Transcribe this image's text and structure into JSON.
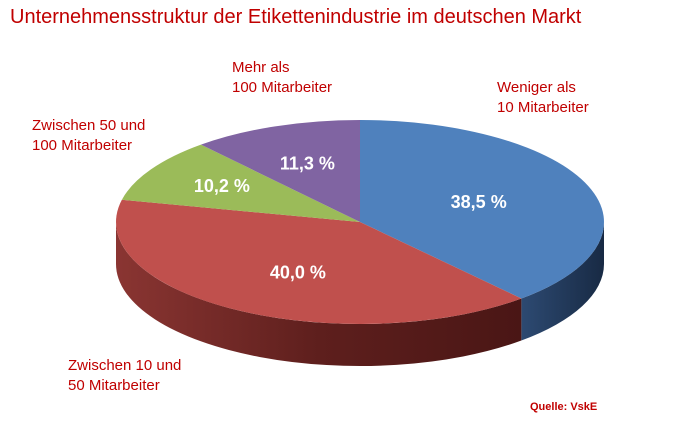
{
  "chart_data": {
    "type": "pie",
    "title": "Unternehmensstruktur der Etikettenindustrie im deutschen Markt",
    "source": "Quelle: VskE",
    "slices": [
      {
        "label_lines": [
          "Weniger als",
          "10 Mitarbeiter"
        ],
        "value": 38.5,
        "value_label": "38,5 %",
        "color": "#4f81bd"
      },
      {
        "label_lines": [
          "Zwischen 10 und",
          "50 Mitarbeiter"
        ],
        "value": 40.0,
        "value_label": "40,0 %",
        "color": "#c0504d"
      },
      {
        "label_lines": [
          "Zwischen 50 und",
          "100 Mitarbeiter"
        ],
        "value": 10.2,
        "value_label": "10,2 %",
        "color": "#9bbb59"
      },
      {
        "label_lines": [
          "Mehr als",
          "100 Mitarbeiter"
        ],
        "value": 11.3,
        "value_label": "11,3 %",
        "color": "#8064a2"
      }
    ]
  }
}
